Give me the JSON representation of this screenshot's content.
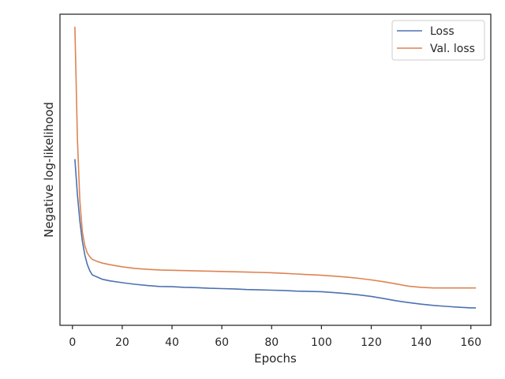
{
  "chart_data": {
    "type": "line",
    "title": "",
    "xlabel": "Epochs",
    "ylabel": "Negative log-likelihood",
    "xlim": [
      -5.0,
      168.0
    ],
    "ylim": [
      0.0,
      1.0
    ],
    "y_ticks_shown": false,
    "grid": false,
    "legend_placement": "top-right",
    "x_ticks": [
      0,
      20,
      40,
      60,
      80,
      100,
      120,
      140,
      160
    ],
    "series": [
      {
        "name": "Loss",
        "color": "#4c72b0",
        "x": [
          1,
          2,
          3,
          4,
          5,
          6,
          7,
          8,
          10,
          12,
          15,
          20,
          25,
          30,
          35,
          40,
          45,
          50,
          55,
          60,
          65,
          70,
          75,
          80,
          85,
          90,
          95,
          100,
          105,
          110,
          115,
          120,
          125,
          130,
          135,
          140,
          145,
          150,
          155,
          160,
          162
        ],
        "y": [
          0.534,
          0.42,
          0.335,
          0.27,
          0.225,
          0.195,
          0.175,
          0.162,
          0.155,
          0.148,
          0.143,
          0.137,
          0.132,
          0.128,
          0.125,
          0.124,
          0.122,
          0.121,
          0.119,
          0.118,
          0.117,
          0.115,
          0.114,
          0.113,
          0.112,
          0.11,
          0.109,
          0.108,
          0.105,
          0.102,
          0.098,
          0.093,
          0.086,
          0.079,
          0.073,
          0.068,
          0.064,
          0.061,
          0.058,
          0.056,
          0.056
        ]
      },
      {
        "name": "Val. loss",
        "color": "#dd8452",
        "x": [
          1,
          2,
          3,
          4,
          5,
          6,
          7,
          8,
          10,
          12,
          15,
          20,
          25,
          30,
          35,
          40,
          45,
          50,
          55,
          60,
          65,
          70,
          75,
          80,
          85,
          90,
          95,
          100,
          105,
          110,
          115,
          120,
          125,
          130,
          135,
          140,
          145,
          150,
          155,
          160,
          162
        ],
        "y": [
          0.96,
          0.6,
          0.4,
          0.3,
          0.255,
          0.232,
          0.22,
          0.212,
          0.205,
          0.2,
          0.195,
          0.188,
          0.183,
          0.18,
          0.178,
          0.177,
          0.176,
          0.175,
          0.174,
          0.173,
          0.172,
          0.171,
          0.17,
          0.169,
          0.167,
          0.165,
          0.163,
          0.161,
          0.158,
          0.155,
          0.151,
          0.146,
          0.14,
          0.133,
          0.126,
          0.122,
          0.12,
          0.12,
          0.12,
          0.12,
          0.12
        ]
      }
    ]
  }
}
